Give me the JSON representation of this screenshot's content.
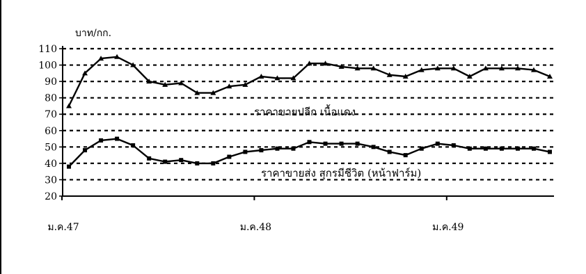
{
  "chart_data": {
    "type": "line",
    "ylabel": "บาท/กก.",
    "ylim": [
      20,
      110
    ],
    "yticks": [
      20,
      30,
      40,
      50,
      60,
      70,
      80,
      90,
      100,
      110
    ],
    "grid": true,
    "x_tick_labels": [
      {
        "label": "ม.ค.47",
        "index": 0
      },
      {
        "label": "ม.ค.48",
        "index": 12
      },
      {
        "label": "ม.ค.49",
        "index": 24
      }
    ],
    "x_count": 31,
    "series": [
      {
        "name": "ราคาขายปลีก เนื้อแดง",
        "marker": "triangle",
        "values": [
          75,
          95,
          104,
          105,
          100,
          90,
          88,
          89,
          83,
          83,
          87,
          88,
          93,
          92,
          92,
          101,
          101,
          99,
          98,
          98,
          94,
          93,
          97,
          98,
          98,
          93,
          98,
          98,
          98,
          97,
          93
        ]
      },
      {
        "name": "ราคาขายส่ง สุกรมีชีวิต (หน้าฟาร์ม)",
        "marker": "square",
        "values": [
          38,
          48,
          54,
          55,
          51,
          43,
          41,
          42,
          40,
          40,
          44,
          47,
          48,
          49,
          49,
          53,
          52,
          52,
          52,
          50,
          47,
          45,
          49,
          52,
          51,
          49,
          49,
          49,
          49,
          49,
          47
        ]
      }
    ]
  }
}
